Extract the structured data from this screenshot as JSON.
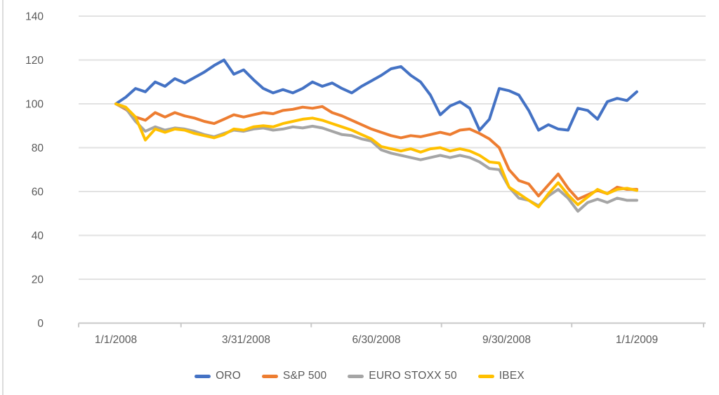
{
  "chart_data": {
    "type": "line",
    "title": "",
    "x_tick_labels": [
      "1/1/2008",
      "3/31/2008",
      "6/30/2008",
      "9/30/2008",
      "1/1/2009"
    ],
    "y_ticks": [
      0,
      20,
      40,
      60,
      80,
      100,
      120,
      140
    ],
    "ylim": [
      0,
      140
    ],
    "grid": "horizontal",
    "legend_position": "bottom",
    "point_interval": "weekly",
    "series": [
      {
        "name": "ORO",
        "color": "#4472C4",
        "values": [
          100,
          103,
          107,
          105.5,
          110,
          108,
          111.5,
          109.5,
          112,
          114.5,
          117.5,
          120,
          113.5,
          115.5,
          111,
          107,
          105,
          106.5,
          105,
          107,
          110,
          108,
          109.5,
          107,
          105,
          108,
          110.5,
          113,
          116,
          117,
          113,
          110,
          104,
          95,
          99,
          101,
          98,
          88,
          93,
          107,
          106,
          104,
          97,
          88,
          90.5,
          88.5,
          88,
          98,
          97,
          93,
          101,
          102.5,
          101.5,
          105.5
        ]
      },
      {
        "name": "S&P 500",
        "color": "#ED7D31",
        "values": [
          100,
          97.5,
          94,
          92.5,
          96,
          94,
          96,
          94.5,
          93.5,
          92,
          91,
          93,
          95,
          94,
          95,
          96,
          95.5,
          97,
          97.5,
          98.5,
          98,
          98.8,
          96,
          94.5,
          92.5,
          90.5,
          88.5,
          87,
          85.5,
          84.5,
          85.5,
          85,
          86,
          87,
          86,
          88,
          88.5,
          86.5,
          84,
          80,
          70,
          65,
          63.5,
          58,
          63,
          68,
          61.5,
          56.5,
          58.5,
          60.5,
          59,
          62,
          61,
          61
        ]
      },
      {
        "name": "EURO STOXX 50",
        "color": "#A5A5A5",
        "values": [
          100,
          98,
          92,
          87.5,
          89.5,
          88,
          89,
          88.5,
          87.5,
          86,
          85,
          86.5,
          88,
          87.5,
          88.5,
          89,
          88,
          88.5,
          89.5,
          89,
          89.8,
          89,
          87.5,
          86,
          85.5,
          84,
          83,
          79,
          77.5,
          76.5,
          75.5,
          74.5,
          75.5,
          76.5,
          75.5,
          76.5,
          75.5,
          73.5,
          70.5,
          70,
          62,
          57,
          56,
          53.5,
          58,
          61,
          57,
          51,
          55,
          56.5,
          55,
          57,
          56,
          56
        ]
      },
      {
        "name": "IBEX",
        "color": "#FFC000",
        "values": [
          100,
          98.5,
          94,
          83.5,
          88.5,
          87,
          88.5,
          88,
          86.5,
          85.5,
          84.5,
          86,
          88.5,
          88,
          89.5,
          90,
          89.5,
          91,
          92,
          93,
          93.5,
          92.5,
          91,
          89.5,
          88,
          86,
          84,
          80.5,
          79.5,
          78.5,
          79.5,
          78,
          79.5,
          80,
          78.5,
          79.5,
          78.5,
          76.5,
          73.5,
          73,
          62,
          59,
          56,
          53,
          59,
          64,
          58.5,
          54,
          57.5,
          61,
          59,
          61,
          61.5,
          60.5
        ]
      }
    ]
  },
  "style": {
    "axis_text_color": "#595959",
    "gridline_color": "#e2e2e2",
    "axis_line_color": "#c9c9c9",
    "background_color": "#ffffff"
  }
}
